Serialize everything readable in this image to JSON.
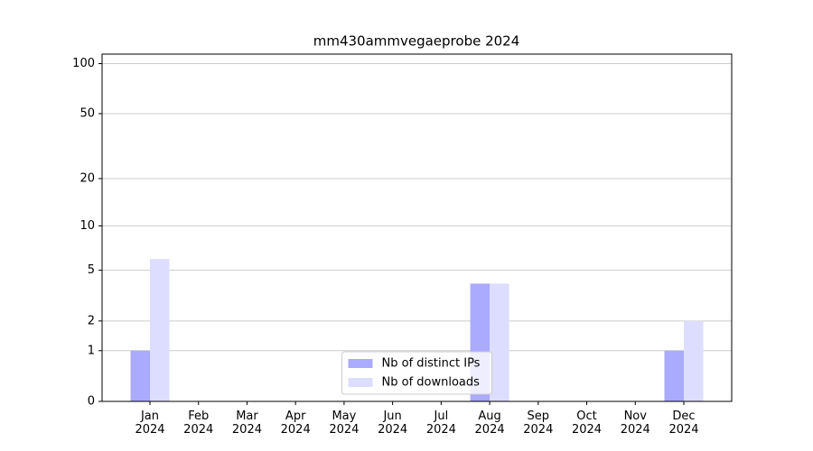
{
  "chart_data": {
    "type": "bar",
    "title": "mm430ammvegaeprobe 2024",
    "categories": [
      "Jan 2024",
      "Feb 2024",
      "Mar 2024",
      "Apr 2024",
      "May 2024",
      "Jun 2024",
      "Jul 2024",
      "Aug 2024",
      "Sep 2024",
      "Oct 2024",
      "Nov 2024",
      "Dec 2024"
    ],
    "series": [
      {
        "name": "Nb of distinct IPs",
        "color": "#aaaaff",
        "values": [
          1,
          0,
          0,
          0,
          0,
          0,
          0,
          4,
          0,
          0,
          0,
          1
        ]
      },
      {
        "name": "Nb of downloads",
        "color": "#ddddff",
        "values": [
          6,
          0,
          0,
          0,
          0,
          0,
          0,
          4,
          0,
          0,
          0,
          2
        ]
      }
    ],
    "scale": "log1p",
    "ylim": [
      0,
      114
    ],
    "yticks": [
      0,
      1,
      2,
      5,
      10,
      20,
      50,
      100
    ],
    "grid": true,
    "legend": "lower center"
  }
}
